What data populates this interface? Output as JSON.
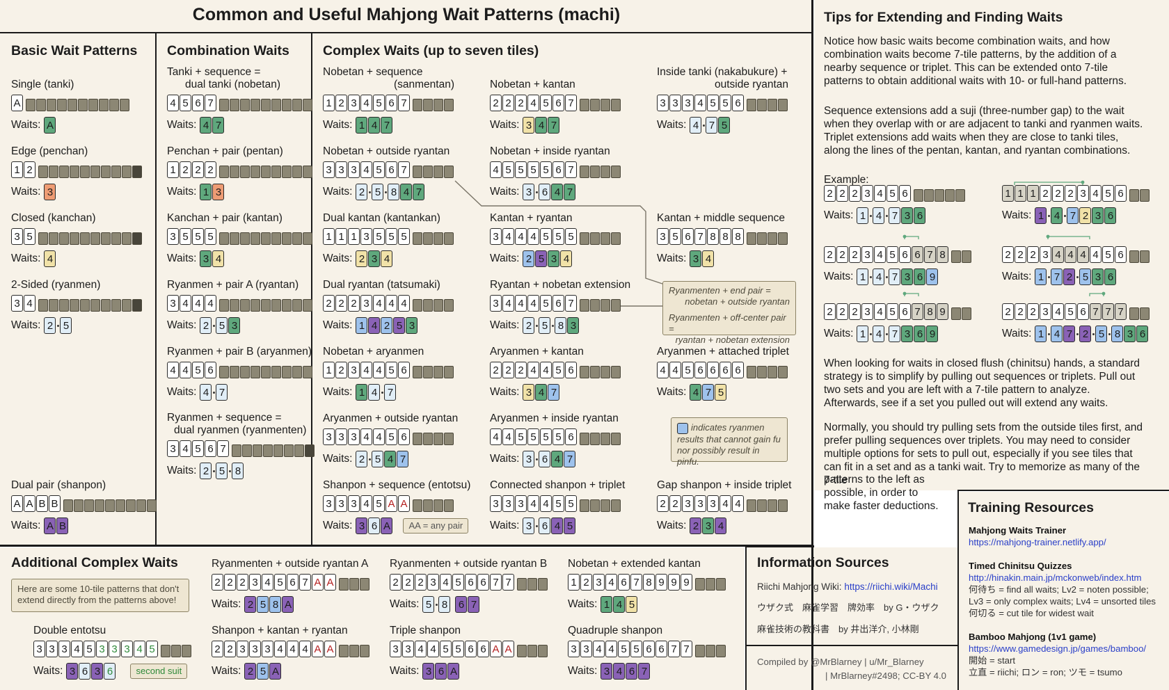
{
  "title": "Common and Useful Mahjong Wait Patterns (machi)",
  "waits_label": "Waits:",
  "basic": {
    "heading": "Basic Wait Patterns",
    "single": {
      "label": "Single (tanki)",
      "tiles": [
        "A"
      ],
      "waits": [
        "A"
      ]
    },
    "edge": {
      "label": "Edge (penchan)",
      "tiles": [
        "1",
        "2"
      ],
      "waits": [
        "3"
      ]
    },
    "closed": {
      "label": "Closed (kanchan)",
      "tiles": [
        "3",
        "5"
      ],
      "waits": [
        "4"
      ]
    },
    "sided": {
      "label": "2-Sided (ryanmen)",
      "tiles": [
        "3",
        "4"
      ],
      "waits": [
        "2",
        "5"
      ]
    },
    "dual_pair": {
      "label": "Dual pair (shanpon)",
      "tiles": [
        "A",
        "A",
        "B",
        "B"
      ],
      "waits": [
        "A",
        "B"
      ]
    }
  },
  "combo": {
    "heading": "Combination Waits",
    "nobetan": {
      "label1": "Tanki + sequence =",
      "label2": "dual tanki (nobetan)",
      "tiles": [
        "4",
        "5",
        "6",
        "7"
      ],
      "waits": [
        "4",
        "7"
      ]
    },
    "pentan": {
      "label": "Penchan + pair (pentan)",
      "tiles": [
        "1",
        "2",
        "2",
        "2"
      ],
      "waits": [
        "1",
        "3"
      ]
    },
    "kantan": {
      "label": "Kanchan + pair (kantan)",
      "tiles": [
        "3",
        "5",
        "5",
        "5"
      ],
      "waits": [
        "3",
        "4"
      ]
    },
    "ryantan": {
      "label": "Ryanmen + pair A (ryantan)",
      "tiles": [
        "3",
        "4",
        "4",
        "4"
      ],
      "waits": [
        "2",
        "5",
        "3"
      ]
    },
    "aryanmen": {
      "label": "Ryanmen + pair B (aryanmen)",
      "tiles": [
        "4",
        "4",
        "5",
        "6"
      ],
      "waits": [
        "4",
        "7"
      ]
    },
    "ryanmenten": {
      "label1": "Ryanmen + sequence =",
      "label2": "dual ryanmen (ryanmenten)",
      "tiles": [
        "3",
        "4",
        "5",
        "6",
        "7"
      ],
      "waits": [
        "2",
        "5",
        "8"
      ]
    }
  },
  "complex": {
    "heading": "Complex Waits (up to seven tiles)",
    "sanmentan": {
      "label1": "Nobetan + sequence",
      "label2": "(sanmentan)",
      "tiles": [
        "1",
        "2",
        "3",
        "4",
        "5",
        "6",
        "7"
      ],
      "waits": [
        "1",
        "4",
        "7"
      ]
    },
    "nob_kantan": {
      "label": "Nobetan + kantan",
      "tiles": [
        "2",
        "2",
        "2",
        "4",
        "5",
        "6",
        "7"
      ],
      "waits": [
        "3",
        "4",
        "7"
      ]
    },
    "nakabukure": {
      "label1": "Inside tanki (nakabukure) +",
      "label2": "outside ryantan",
      "tiles": [
        "3",
        "3",
        "3",
        "4",
        "5",
        "5",
        "6"
      ],
      "waits": [
        "4",
        "7",
        "5"
      ]
    },
    "nob_out": {
      "label": "Nobetan + outside ryantan",
      "tiles": [
        "3",
        "3",
        "3",
        "4",
        "5",
        "6",
        "7"
      ],
      "waits": [
        "2",
        "5",
        "8",
        "4",
        "7"
      ]
    },
    "nob_in": {
      "label": "Nobetan + inside ryantan",
      "tiles": [
        "4",
        "5",
        "5",
        "5",
        "5",
        "6",
        "7"
      ],
      "waits": [
        "3",
        "6",
        "4",
        "7"
      ]
    },
    "kantankan": {
      "label": "Dual kantan (kantankan)",
      "tiles": [
        "1",
        "1",
        "1",
        "3",
        "5",
        "5",
        "5"
      ],
      "waits": [
        "2",
        "3",
        "4"
      ]
    },
    "kan_ryan": {
      "label": "Kantan + ryantan",
      "tiles": [
        "3",
        "4",
        "4",
        "4",
        "5",
        "5",
        "5"
      ],
      "waits": [
        "2",
        "5",
        "3",
        "4"
      ]
    },
    "kan_mid": {
      "label": "Kantan + middle sequence",
      "tiles": [
        "3",
        "5",
        "6",
        "7",
        "8",
        "8",
        "8"
      ],
      "waits": [
        "3",
        "4"
      ]
    },
    "tatsumaki": {
      "label": "Dual ryantan (tatsumaki)",
      "tiles": [
        "2",
        "2",
        "2",
        "3",
        "4",
        "4",
        "4"
      ],
      "waits": [
        "1",
        "4",
        "2",
        "5",
        "3"
      ]
    },
    "ryan_nob": {
      "label": "Ryantan + nobetan extension",
      "tiles": [
        "3",
        "4",
        "4",
        "4",
        "5",
        "6",
        "7"
      ],
      "waits": [
        "2",
        "5",
        "8",
        "3"
      ]
    },
    "nob_aryan": {
      "label": "Nobetan + aryanmen",
      "tiles": [
        "1",
        "2",
        "3",
        "4",
        "4",
        "5",
        "6"
      ],
      "waits": [
        "1",
        "4",
        "7"
      ]
    },
    "aryan_kan": {
      "label": "Aryanmen + kantan",
      "tiles": [
        "2",
        "2",
        "2",
        "4",
        "4",
        "5",
        "6"
      ],
      "waits": [
        "3",
        "4",
        "7"
      ]
    },
    "aryan_trip": {
      "label": "Aryanmen + attached triplet",
      "tiles": [
        "4",
        "4",
        "5",
        "6",
        "6",
        "6",
        "6"
      ],
      "waits": [
        "4",
        "7",
        "5"
      ]
    },
    "aryan_out": {
      "label": "Aryanmen + outside ryantan",
      "tiles": [
        "3",
        "3",
        "3",
        "4",
        "4",
        "5",
        "6"
      ],
      "waits": [
        "2",
        "5",
        "4",
        "7"
      ]
    },
    "aryan_in": {
      "label": "Aryanmen + inside ryantan",
      "tiles": [
        "4",
        "4",
        "5",
        "5",
        "5",
        "5",
        "6"
      ],
      "waits": [
        "3",
        "6",
        "4",
        "7"
      ]
    },
    "entotsu": {
      "label": "Shanpon + sequence (entotsu)",
      "tiles": [
        "3",
        "3",
        "3",
        "4",
        "5",
        "A",
        "A"
      ],
      "waits": [
        "3",
        "6",
        "A"
      ]
    },
    "conn_shanpon": {
      "label": "Connected shanpon + triplet",
      "tiles": [
        "3",
        "3",
        "3",
        "4",
        "4",
        "5",
        "5"
      ],
      "waits": [
        "3",
        "6",
        "4",
        "5"
      ]
    },
    "gap_shanpon": {
      "label": "Gap shanpon + inside triplet",
      "tiles": [
        "2",
        "2",
        "3",
        "3",
        "3",
        "4",
        "4"
      ],
      "waits": [
        "2",
        "3",
        "4"
      ]
    },
    "any_pair": "AA = any pair",
    "callout1a": "Ryanmenten + end pair =",
    "callout1b": "nobetan + outside ryantan",
    "callout2a": "Ryanmenten + off-center pair =",
    "callout2b": "ryantan + nobetan extension",
    "legend1": "indicates ryanmen",
    "legend2": "results that cannot gain fu",
    "legend3": "nor possibly result in pinfu."
  },
  "additional": {
    "heading": "Additional Complex Waits",
    "intro1": "Here are some 10-tile patterns that don't",
    "intro2": "extend directly from the patterns above!",
    "double_entotsu": {
      "label": "Double entotsu",
      "tiles": [
        "3",
        "3",
        "3",
        "4",
        "5",
        "3",
        "3",
        "3",
        "4",
        "5"
      ],
      "waits": [
        "3",
        "6",
        "3",
        "6"
      ],
      "note": "second suit"
    },
    "ryanmenten_A": {
      "label": "Ryanmenten + outside ryantan A",
      "tiles": [
        "2",
        "2",
        "2",
        "3",
        "4",
        "5",
        "6",
        "7",
        "A",
        "A"
      ],
      "waits": [
        "2",
        "5",
        "8",
        "A"
      ]
    },
    "ryanmenten_B": {
      "label": "Ryanmenten + outside ryantan B",
      "tiles": [
        "2",
        "2",
        "2",
        "3",
        "4",
        "5",
        "6",
        "6",
        "7",
        "7"
      ],
      "waits": [
        "5",
        "8",
        "6",
        "7"
      ]
    },
    "nob_ext_kantan": {
      "label": "Nobetan + extended kantan",
      "tiles": [
        "1",
        "2",
        "3",
        "4",
        "6",
        "7",
        "8",
        "9",
        "9",
        "9"
      ],
      "waits": [
        "1",
        "4",
        "5"
      ]
    },
    "shan_kan_ryan": {
      "label": "Shanpon + kantan + ryantan",
      "tiles": [
        "2",
        "2",
        "3",
        "3",
        "3",
        "4",
        "4",
        "4",
        "A",
        "A"
      ],
      "waits": [
        "2",
        "5",
        "A"
      ]
    },
    "triple_shanpon": {
      "label": "Triple shanpon",
      "tiles": [
        "3",
        "3",
        "4",
        "4",
        "5",
        "5",
        "6",
        "6",
        "A",
        "A"
      ],
      "waits": [
        "3",
        "6",
        "A"
      ]
    },
    "quad_shanpon": {
      "label": "Quadruple shanpon",
      "tiles": [
        "3",
        "3",
        "4",
        "4",
        "5",
        "5",
        "6",
        "6",
        "7",
        "7"
      ],
      "waits": [
        "3",
        "4",
        "6",
        "7"
      ]
    }
  },
  "tips": {
    "heading": "Tips for Extending and Finding Waits",
    "p1": "Notice how basic waits become combination waits, and how combination waits become 7-tile patterns, by the addition of a nearby sequence or triplet. This can be extended onto 7-tile patterns to obtain additional waits with 10- or full-hand patterns.",
    "p2": "Sequence extensions add a suji (three-number gap) to the wait when they overlap with or are adjacent to tanki and ryanmen waits. Triplet extensions add waits when they are close to tanki tiles, along the lines of the pentan, kantan, and ryantan combinations.",
    "example_label": "Example:",
    "ex": [
      {
        "tiles": [
          "2",
          "2",
          "2",
          "3",
          "4",
          "5",
          "6"
        ],
        "waits": [
          "1",
          "4",
          "7",
          "3",
          "6"
        ]
      },
      {
        "tiles": [
          "1",
          "1",
          "1",
          "2",
          "2",
          "2",
          "3",
          "4",
          "5",
          "6"
        ],
        "waits": [
          "1",
          "4",
          "7",
          "2",
          "3",
          "6"
        ]
      },
      {
        "tiles": [
          "2",
          "2",
          "2",
          "3",
          "4",
          "5",
          "6",
          "6",
          "7",
          "8"
        ],
        "waits": [
          "1",
          "4",
          "7",
          "3",
          "6",
          "9"
        ]
      },
      {
        "tiles": [
          "2",
          "2",
          "2",
          "3",
          "4",
          "4",
          "4",
          "4",
          "5",
          "6"
        ],
        "waits": [
          "1",
          "7",
          "2",
          "5",
          "3",
          "6"
        ]
      },
      {
        "tiles": [
          "2",
          "2",
          "2",
          "3",
          "4",
          "5",
          "6",
          "7",
          "8",
          "9"
        ],
        "waits": [
          "1",
          "4",
          "7",
          "3",
          "6",
          "9"
        ]
      },
      {
        "tiles": [
          "2",
          "2",
          "2",
          "3",
          "4",
          "5",
          "6",
          "7",
          "7",
          "7"
        ],
        "waits": [
          "1",
          "4",
          "7",
          "2",
          "5",
          "8",
          "3",
          "6"
        ]
      }
    ],
    "p3": "When looking for waits in closed flush (chinitsu) hands, a standard strategy is to simplify by pulling out sequences or triplets. Pull out two sets and you are left with a 7-tile pattern to analyze. Afterwards, see if a set you pulled out will extend any waits.",
    "p4a": "Normally, you should try pulling sets from the outside tiles first, and prefer pulling sequences over triplets. You may need to consider multiple options for sets to pull out, especially if you see tiles that can fit in a set and as a tanki wait. Try to memorize as many of the 7-tile",
    "p4b": [
      "patterns to the left as",
      "possible, in order to",
      "make faster deductions."
    ]
  },
  "sources": {
    "heading": "Information Sources",
    "wiki_label": "Riichi Mahjong Wiki:",
    "wiki_url": "https://riichi.wiki/Machi",
    "book1": "ウザク式　麻雀学習　牌効率　by G・ウザク",
    "book2": "麻雀技術の教科書　by 井出洋介, 小林剛",
    "credit1": "Compiled by @MrBlarney | u/Mr_Blarney",
    "credit2": "| MrBlarney#2498; CC-BY 4.0"
  },
  "training": {
    "heading": "Training Resources",
    "r1_title": "Mahjong Waits Trainer",
    "r1_url": "https://mahjong-trainer.netlify.app/",
    "r2_title": "Timed Chinitsu Quizzes",
    "r2_url": "http://hinakin.main.jp/mckonweb/index.htm",
    "r2_l1": "何待ち = find all waits; Lv2 = noten possible;",
    "r2_l2": "Lv3 = only complex waits; Lv4 = unsorted tiles",
    "r2_l3": "何切る = cut tile for widest wait",
    "r3_title": "Bamboo Mahjong (1v1 game)",
    "r3_url": "https://www.gamedesign.jp/games/bamboo/",
    "r3_l1": "開始 = start",
    "r3_l2": "立直 = riichi; ロン = ron; ツモ = tsumo"
  },
  "colors": {
    "green": "#5fa87d",
    "orange": "#ee9c74",
    "yellow": "#f1e2a8",
    "light_blue": "#e1eef7",
    "mid_blue": "#9ec2ec",
    "purple": "#8a62b6",
    "panel": "#f7f2e8"
  }
}
